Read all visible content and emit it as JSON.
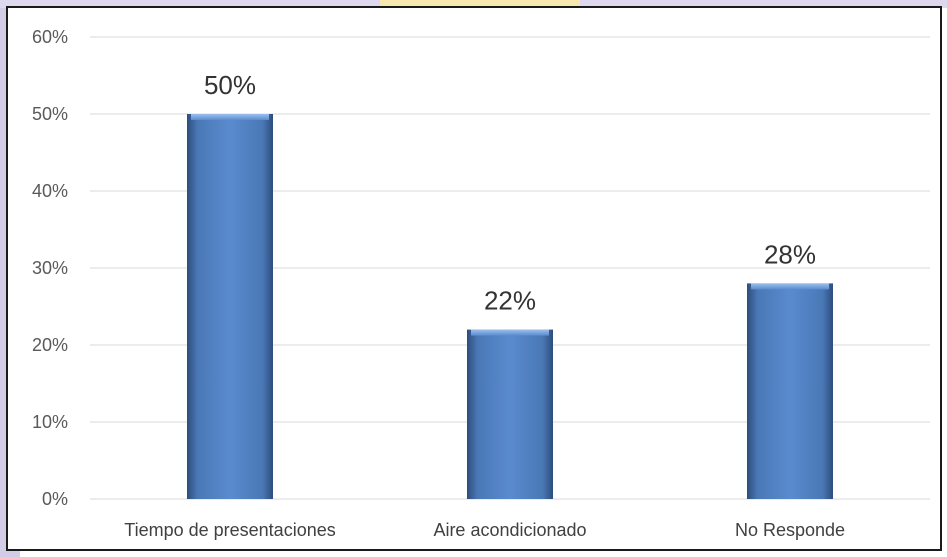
{
  "chart_data": {
    "type": "bar",
    "categories": [
      "Tiempo de presentaciones",
      "Aire acondicionado",
      "No Responde"
    ],
    "values": [
      50,
      22,
      28
    ],
    "data_labels": [
      "50%",
      "22%",
      "28%"
    ],
    "ylim": [
      0,
      60
    ],
    "yticks": [
      0,
      10,
      20,
      30,
      40,
      50,
      60
    ],
    "ytick_labels": [
      "0%",
      "10%",
      "20%",
      "30%",
      "40%",
      "50%",
      "60%"
    ],
    "title": "",
    "xlabel": "",
    "ylabel": "",
    "grid": true,
    "legend": "none",
    "bar_color": "#4f81bd",
    "gridline_color": "#d9d9d9"
  },
  "colors": {
    "decor_purple": "#c9c3e0",
    "decor_gold": "#f7e9b0",
    "frame_border": "#1a1a1a"
  }
}
